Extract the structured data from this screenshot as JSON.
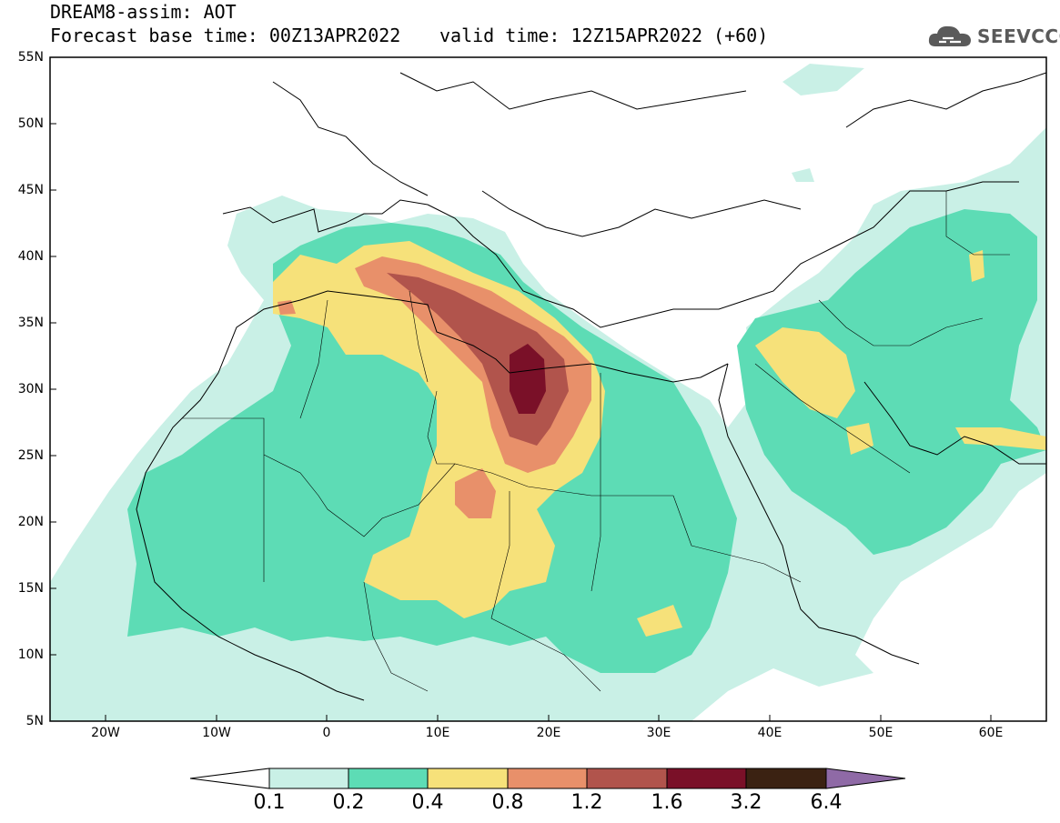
{
  "title": {
    "model": "DREAM8-assim: AOT",
    "base_time": "Forecast base time: 00Z13APR2022",
    "valid_time": "valid time: 12Z15APR2022 (+60)"
  },
  "logo": {
    "text": "SEEVCCC",
    "icon": "cloud-icon"
  },
  "map": {
    "lat_ticks": [
      "55N",
      "50N",
      "45N",
      "40N",
      "35N",
      "30N",
      "25N",
      "20N",
      "15N",
      "10N",
      "5N"
    ],
    "lon_ticks": [
      "20W",
      "10W",
      "0",
      "10E",
      "20E",
      "30E",
      "40E",
      "50E",
      "60E"
    ],
    "extent": {
      "lon": [
        -25,
        65
      ],
      "lat": [
        5,
        55
      ]
    }
  },
  "colorbar": {
    "labels": [
      "0.1",
      "0.2",
      "0.4",
      "0.8",
      "1.2",
      "1.6",
      "3.2",
      "6.4"
    ],
    "colors": [
      "#ffffff",
      "#c9f0e6",
      "#5ddcb5",
      "#f6e17a",
      "#e8906a",
      "#b1544c",
      "#7a1028",
      "#3b2212",
      "#8f6aa6"
    ]
  }
}
